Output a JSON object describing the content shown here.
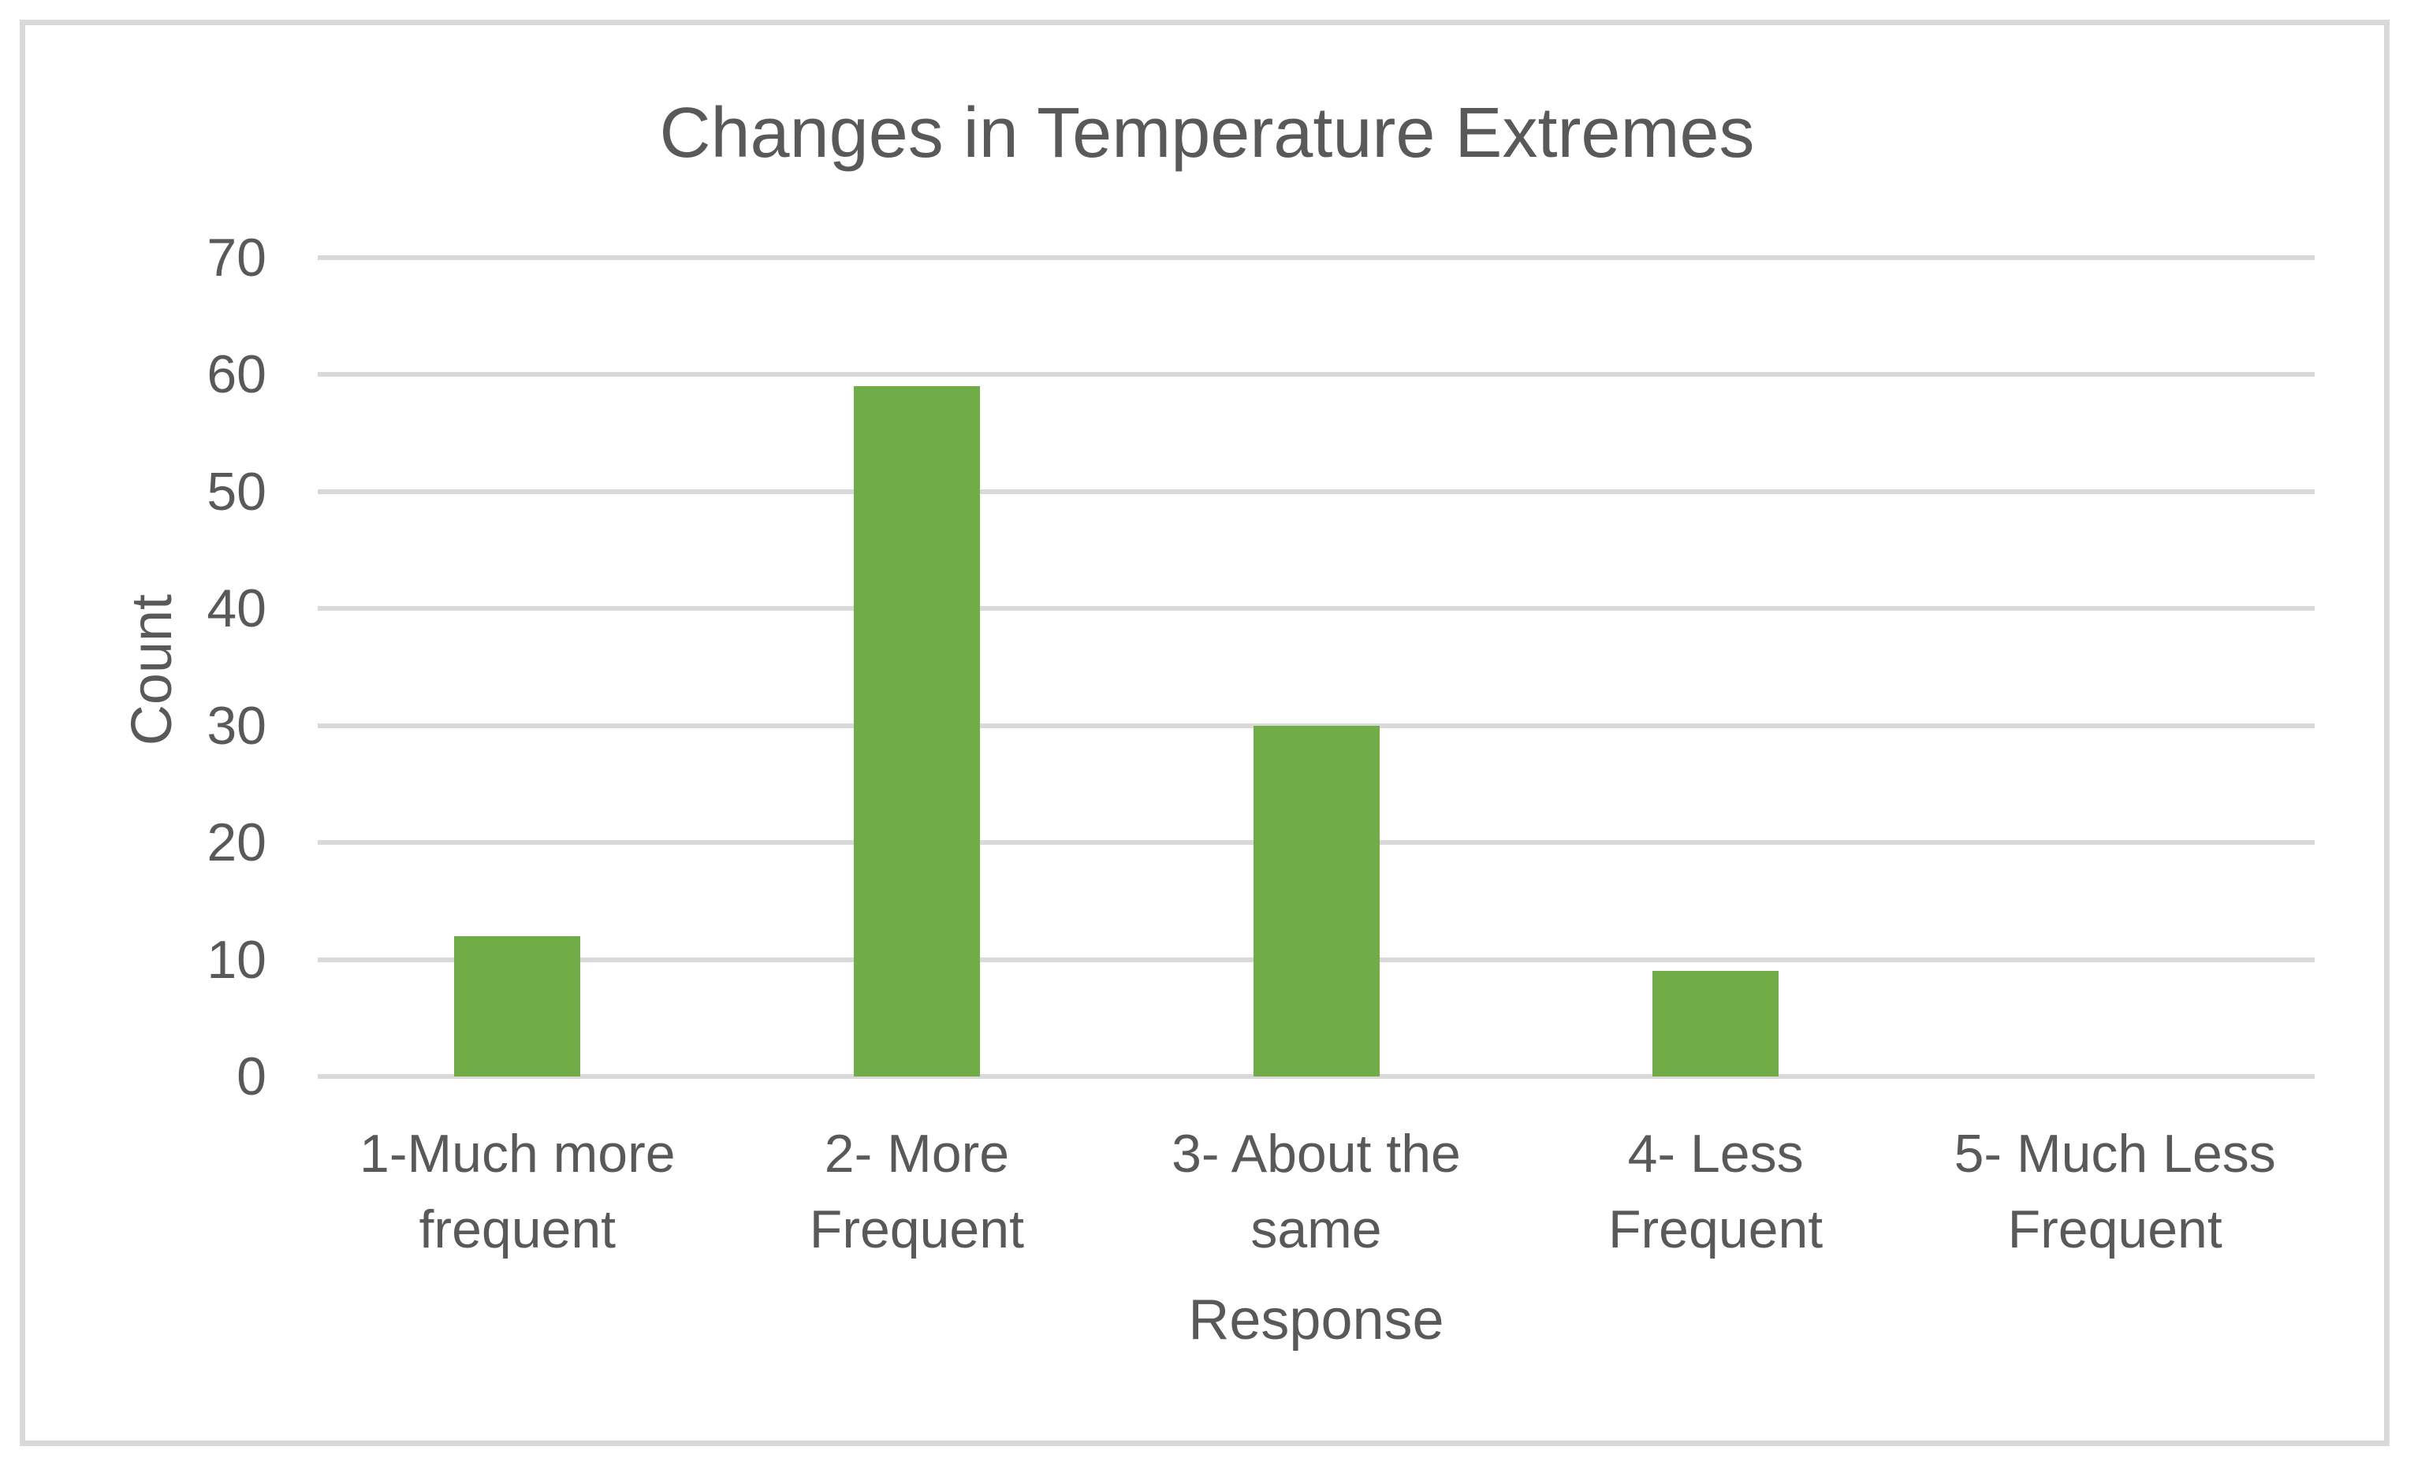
{
  "page": {
    "background": "#ffffff",
    "frame_border_color": "#d9d9d9"
  },
  "chart_data": {
    "type": "bar",
    "title": "Changes in Temperature Extremes",
    "categories": [
      "1-Much more frequent",
      "2- More Frequent",
      "3- About the same",
      "4- Less Frequent",
      "5- Much Less Frequent"
    ],
    "categories_display": [
      [
        "1-Much more",
        "frequent"
      ],
      [
        "2- More",
        "Frequent"
      ],
      [
        "3- About the",
        "same"
      ],
      [
        "4- Less Frequent"
      ],
      [
        "5- Much Less",
        "Frequent"
      ]
    ],
    "values": [
      12,
      59,
      30,
      9,
      0
    ],
    "xlabel": "Response",
    "ylabel": "Count",
    "ylim": [
      0,
      70
    ],
    "yticks": [
      0,
      10,
      20,
      30,
      40,
      50,
      60,
      70
    ],
    "grid": true,
    "legend_position": "none",
    "bar_color": "#70ad47",
    "gridline_color": "#d9d9d9",
    "text_color": "#595959"
  }
}
